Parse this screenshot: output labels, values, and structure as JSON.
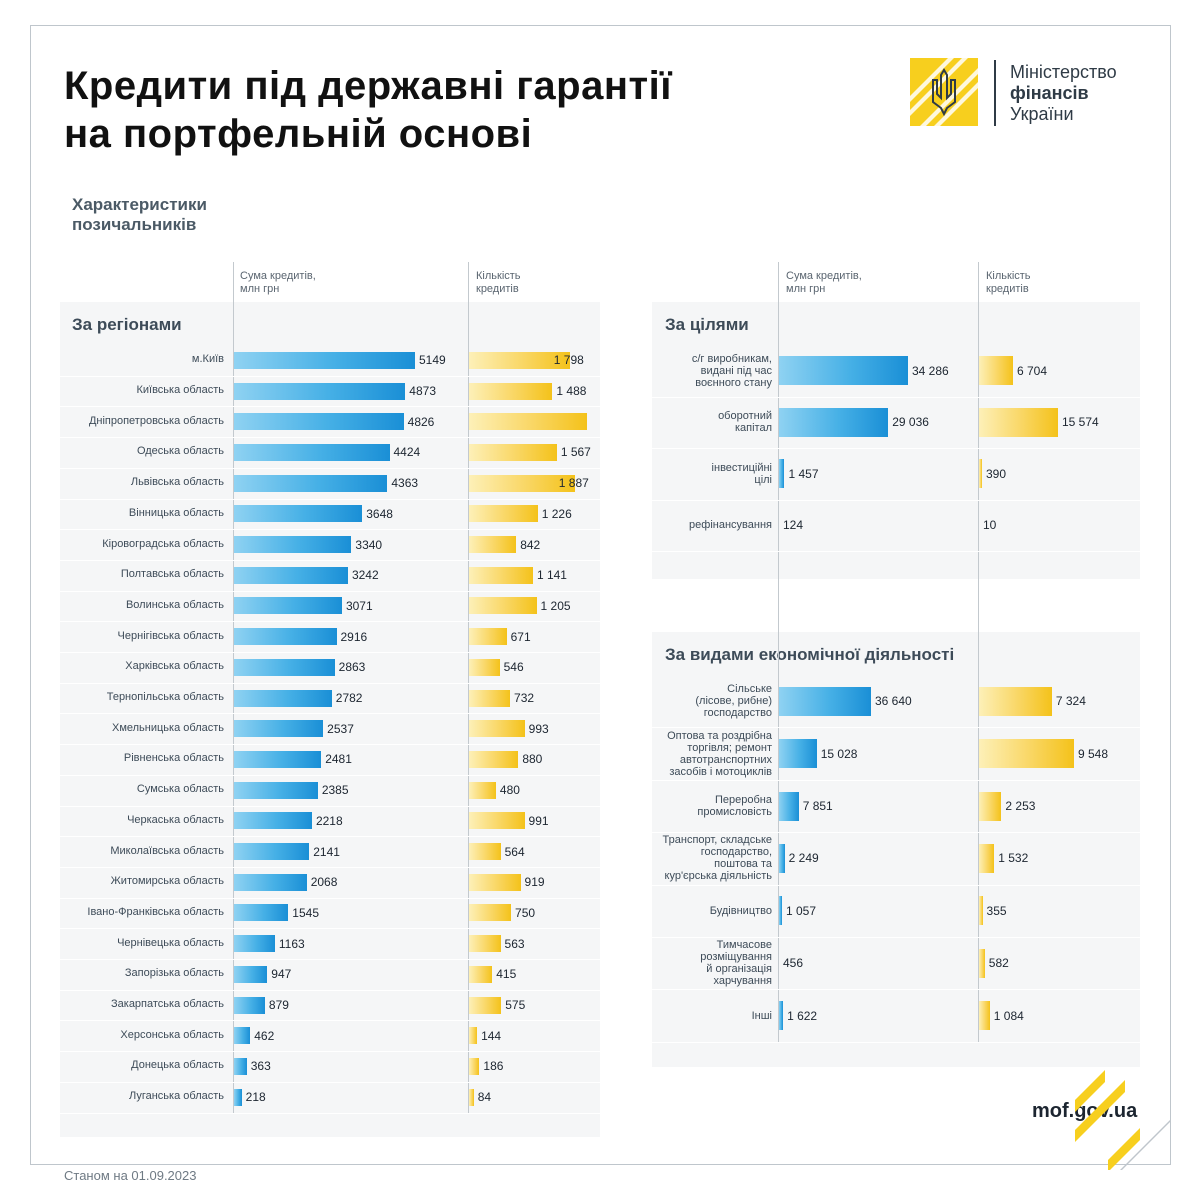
{
  "header": {
    "title_line1": "Кредити під державні гарантії",
    "title_line2": "на портфельній основі",
    "logo_line1": "Міністерство",
    "logo_line2": "фінансів",
    "logo_line3": "України"
  },
  "subtitle_line1": "Характеристики",
  "subtitle_line2": "позичальників",
  "columns": {
    "sum_line1": "Сума кредитів,",
    "sum_line2": "млн грн",
    "count_line1": "Кількість",
    "count_line2": "кредитів"
  },
  "footer": {
    "site": "mof.gov.ua",
    "as_of": "Станом на 01.09.2023"
  },
  "colors": {
    "blue": "#1a8fd6",
    "yellow": "#f4c21a",
    "logo": "#f7cf1e"
  },
  "chart_data": [
    {
      "type": "bar",
      "title": "За регіонами",
      "categories": [
        "м.Київ",
        "Київська область",
        "Дніпропетровська область",
        "Одеська область",
        "Львівська область",
        "Вінницька область",
        "Кіровоградська область",
        "Полтавська область",
        "Волинська область",
        "Чернігівська область",
        "Харківська область",
        "Тернопільська область",
        "Хмельницька область",
        "Рівненська область",
        "Сумська область",
        "Черкаська область",
        "Миколаївська область",
        "Житомирська область",
        "Івано-Франківська область",
        "Чернівецька область",
        "Запорізька область",
        "Закарпатська область",
        "Херсонська область",
        "Донецька область",
        "Луганська область"
      ],
      "series": [
        {
          "name": "Сума кредитів, млн грн",
          "values": [
            5149,
            4873,
            4826,
            4424,
            4363,
            3648,
            3340,
            3242,
            3071,
            2916,
            2863,
            2782,
            2537,
            2481,
            2385,
            2218,
            2141,
            2068,
            1545,
            1163,
            947,
            879,
            462,
            363,
            218
          ],
          "labels": [
            "5149",
            "4873",
            "4826",
            "4424",
            "4363",
            "3648",
            "3340",
            "3242",
            "3071",
            "2916",
            "2863",
            "2782",
            "2537",
            "2481",
            "2385",
            "2218",
            "2141",
            "2068",
            "1545",
            "1163",
            "947",
            "879",
            "462",
            "363",
            "218"
          ]
        },
        {
          "name": "Кількість кредитів",
          "values": [
            1798,
            1488,
            2105,
            1567,
            1887,
            1226,
            842,
            1141,
            1205,
            671,
            546,
            732,
            993,
            880,
            480,
            991,
            564,
            919,
            750,
            563,
            415,
            575,
            144,
            186,
            84
          ],
          "labels": [
            "1 798",
            "1 488",
            "",
            "1 567",
            "1 887",
            "1 226",
            "842",
            "1 141",
            "1 205",
            "671",
            "546",
            "732",
            "993",
            "880",
            "480",
            "991",
            "564",
            "919",
            "750",
            "563",
            "415",
            "575",
            "144",
            "186",
            "84"
          ]
        }
      ]
    },
    {
      "type": "bar",
      "title": "За цілями",
      "categories": [
        [
          "с/г виробникам,",
          "видані під час",
          "воєнного стану"
        ],
        [
          "оборотний",
          "капітал"
        ],
        [
          "інвестиційні",
          "цілі"
        ],
        [
          "рефінансування"
        ]
      ],
      "series": [
        {
          "name": "Сума кредитів, млн грн",
          "values": [
            34286,
            29036,
            1457,
            124
          ],
          "labels": [
            "34 286",
            "29 036",
            "1 457",
            "124"
          ]
        },
        {
          "name": "Кількість кредитів",
          "values": [
            6704,
            15574,
            390,
            10
          ],
          "labels": [
            "6 704",
            "15 574",
            "390",
            "10"
          ]
        }
      ]
    },
    {
      "type": "bar",
      "title": "За видами економічної діяльності",
      "categories": [
        [
          "Сільське",
          "(лісове, рибне)",
          "господарство"
        ],
        [
          "Оптова та роздрібна",
          "торгівля; ремонт",
          "автотранспортних",
          "засобів і мотоциклів"
        ],
        [
          "Переробна",
          "промисловість"
        ],
        [
          "Транспорт, складське",
          "господарство,",
          "поштова та",
          "кур'єрська діяльність"
        ],
        [
          "Будівництво"
        ],
        [
          "Тимчасове",
          "розміщування",
          "й організація",
          "харчування"
        ],
        [
          "Інші"
        ]
      ],
      "series": [
        {
          "name": "Сума кредитів, млн грн",
          "values": [
            36640,
            15028,
            7851,
            2249,
            1057,
            456,
            1622
          ],
          "labels": [
            "36 640",
            "15 028",
            "7 851",
            "2 249",
            "1 057",
            "456",
            "1 622"
          ]
        },
        {
          "name": "Кількість кредитів",
          "values": [
            7324,
            9548,
            2253,
            1532,
            355,
            582,
            1084
          ],
          "labels": [
            "7 324",
            "9 548",
            "2 253",
            "1 532",
            "355",
            "582",
            "1 084"
          ]
        }
      ]
    }
  ]
}
